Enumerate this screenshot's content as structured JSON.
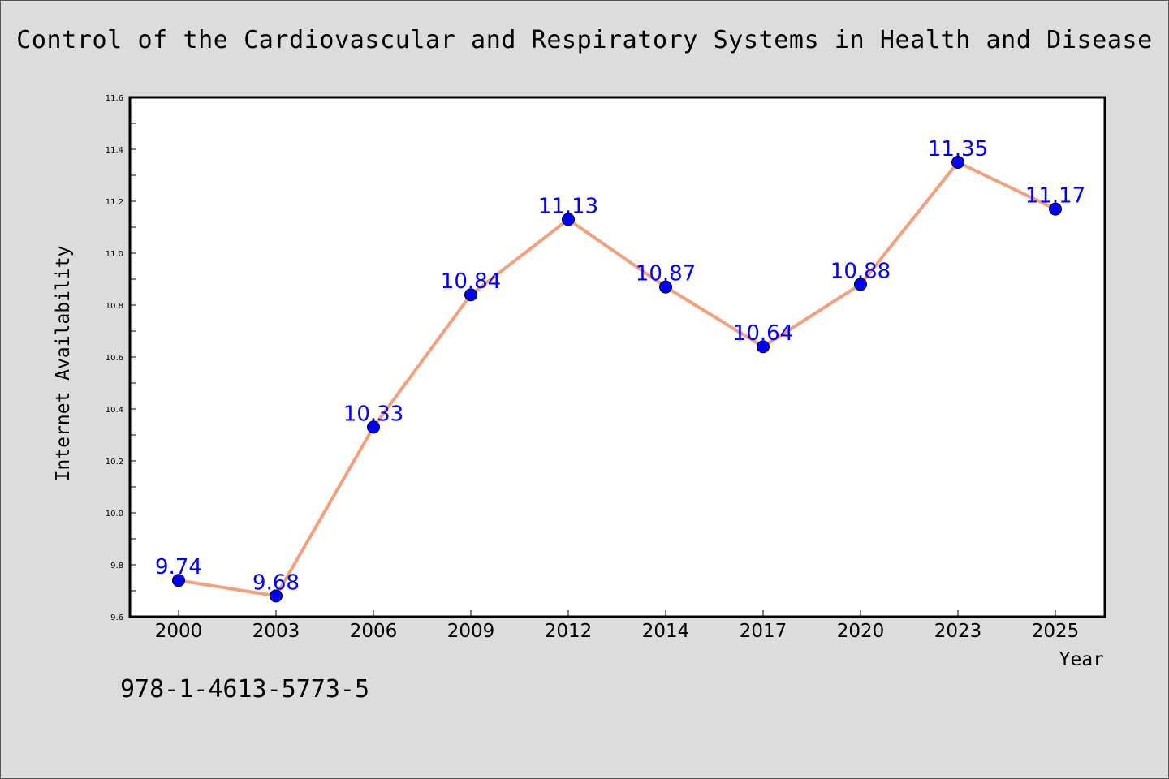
{
  "page": {
    "title": "Control of the Cardiovascular and Respiratory Systems in Health and Disease",
    "footer_text": "978-1-4613-5773-5"
  },
  "chart_data": {
    "type": "line",
    "title": "Control of the Cardiovascular and Respiratory Systems in Health and Disease",
    "xlabel": "Year",
    "ylabel": "Internet Availability",
    "categories": [
      "2000",
      "2003",
      "2006",
      "2009",
      "2012",
      "2014",
      "2017",
      "2020",
      "2023",
      "2025"
    ],
    "series": [
      {
        "values": [
          9.74,
          9.68,
          10.33,
          10.84,
          11.13,
          10.87,
          10.64,
          10.88,
          11.35,
          11.17
        ]
      }
    ],
    "data_labels": [
      "9.74",
      "9.68",
      "10.33",
      "10.84",
      "11.13",
      "10.87",
      "10.64",
      "10.88",
      "11.35",
      "11.17"
    ],
    "ylim": [
      9.6,
      11.6
    ],
    "yticks": [
      "9.6",
      "9.8",
      "10.0",
      "10.2",
      "10.4",
      "10.6",
      "10.8",
      "11.0",
      "11.2",
      "11.4",
      "11.6"
    ],
    "grid": false,
    "legend": "none",
    "colors": {
      "line": "#f4a07c",
      "marker": "#0000ff",
      "label": "#0000ff",
      "plot_background": "#ffffff",
      "page_background": "#dcdcdc"
    }
  }
}
